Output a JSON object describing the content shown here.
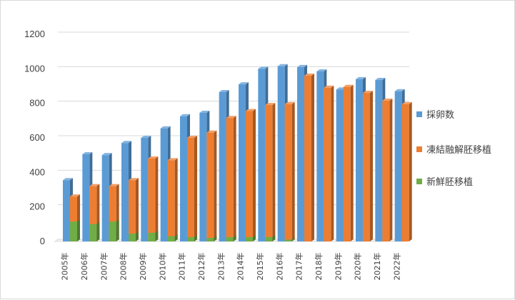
{
  "chart_data": {
    "type": "bar",
    "categories": [
      "2005年",
      "2006年",
      "2007年",
      "2008年",
      "2009年",
      "2010年",
      "2011年",
      "2012年",
      "2013年",
      "2014年",
      "2015年",
      "2016年",
      "2017年",
      "2018年",
      "2019年",
      "2020年",
      "2021年",
      "2022年"
    ],
    "series": [
      {
        "name": "採卵数",
        "color": "#5b9bd5",
        "values": [
          355,
          505,
          500,
          570,
          600,
          655,
          725,
          745,
          865,
          910,
          1000,
          1015,
          1010,
          985,
          880,
          940,
          935,
          870
        ]
      },
      {
        "name": "凍結融解胚移植",
        "color": "#ed7d31",
        "values": [
          260,
          320,
          320,
          355,
          480,
          470,
          600,
          630,
          715,
          755,
          790,
          795,
          960,
          890,
          895,
          860,
          815,
          795
        ]
      },
      {
        "name": "新鮮胚移植",
        "color": "#70ad47",
        "values": [
          115,
          100,
          115,
          45,
          50,
          30,
          25,
          20,
          25,
          25,
          25,
          10,
          0,
          0,
          0,
          0,
          0,
          0
        ]
      }
    ],
    "ylim": [
      0,
      1200
    ],
    "yticks": [
      0,
      200,
      400,
      600,
      800,
      1000,
      1200
    ],
    "grid": true,
    "style": "3d-clustered-column",
    "legend_position": "right"
  }
}
